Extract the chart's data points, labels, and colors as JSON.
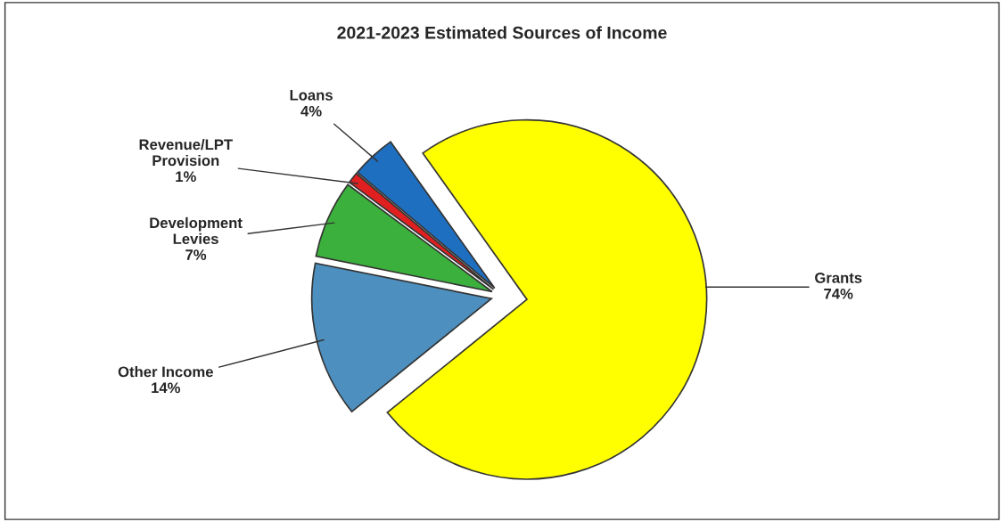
{
  "chart_data": {
    "type": "pie",
    "title": "2021-2023 Estimated Sources of Income",
    "categories": [
      "Grants",
      "Loans",
      "Revenue/LPT\nProvision",
      "Development\nLevies",
      "Other Income"
    ],
    "values": [
      74,
      4,
      1,
      7,
      14
    ],
    "colors": [
      "#ffff00",
      "#1f6fc0",
      "#e02020",
      "#3cb03c",
      "#4d8fbf"
    ],
    "value_labels": [
      "74%",
      "4%",
      "1%",
      "7%",
      "14%"
    ]
  }
}
